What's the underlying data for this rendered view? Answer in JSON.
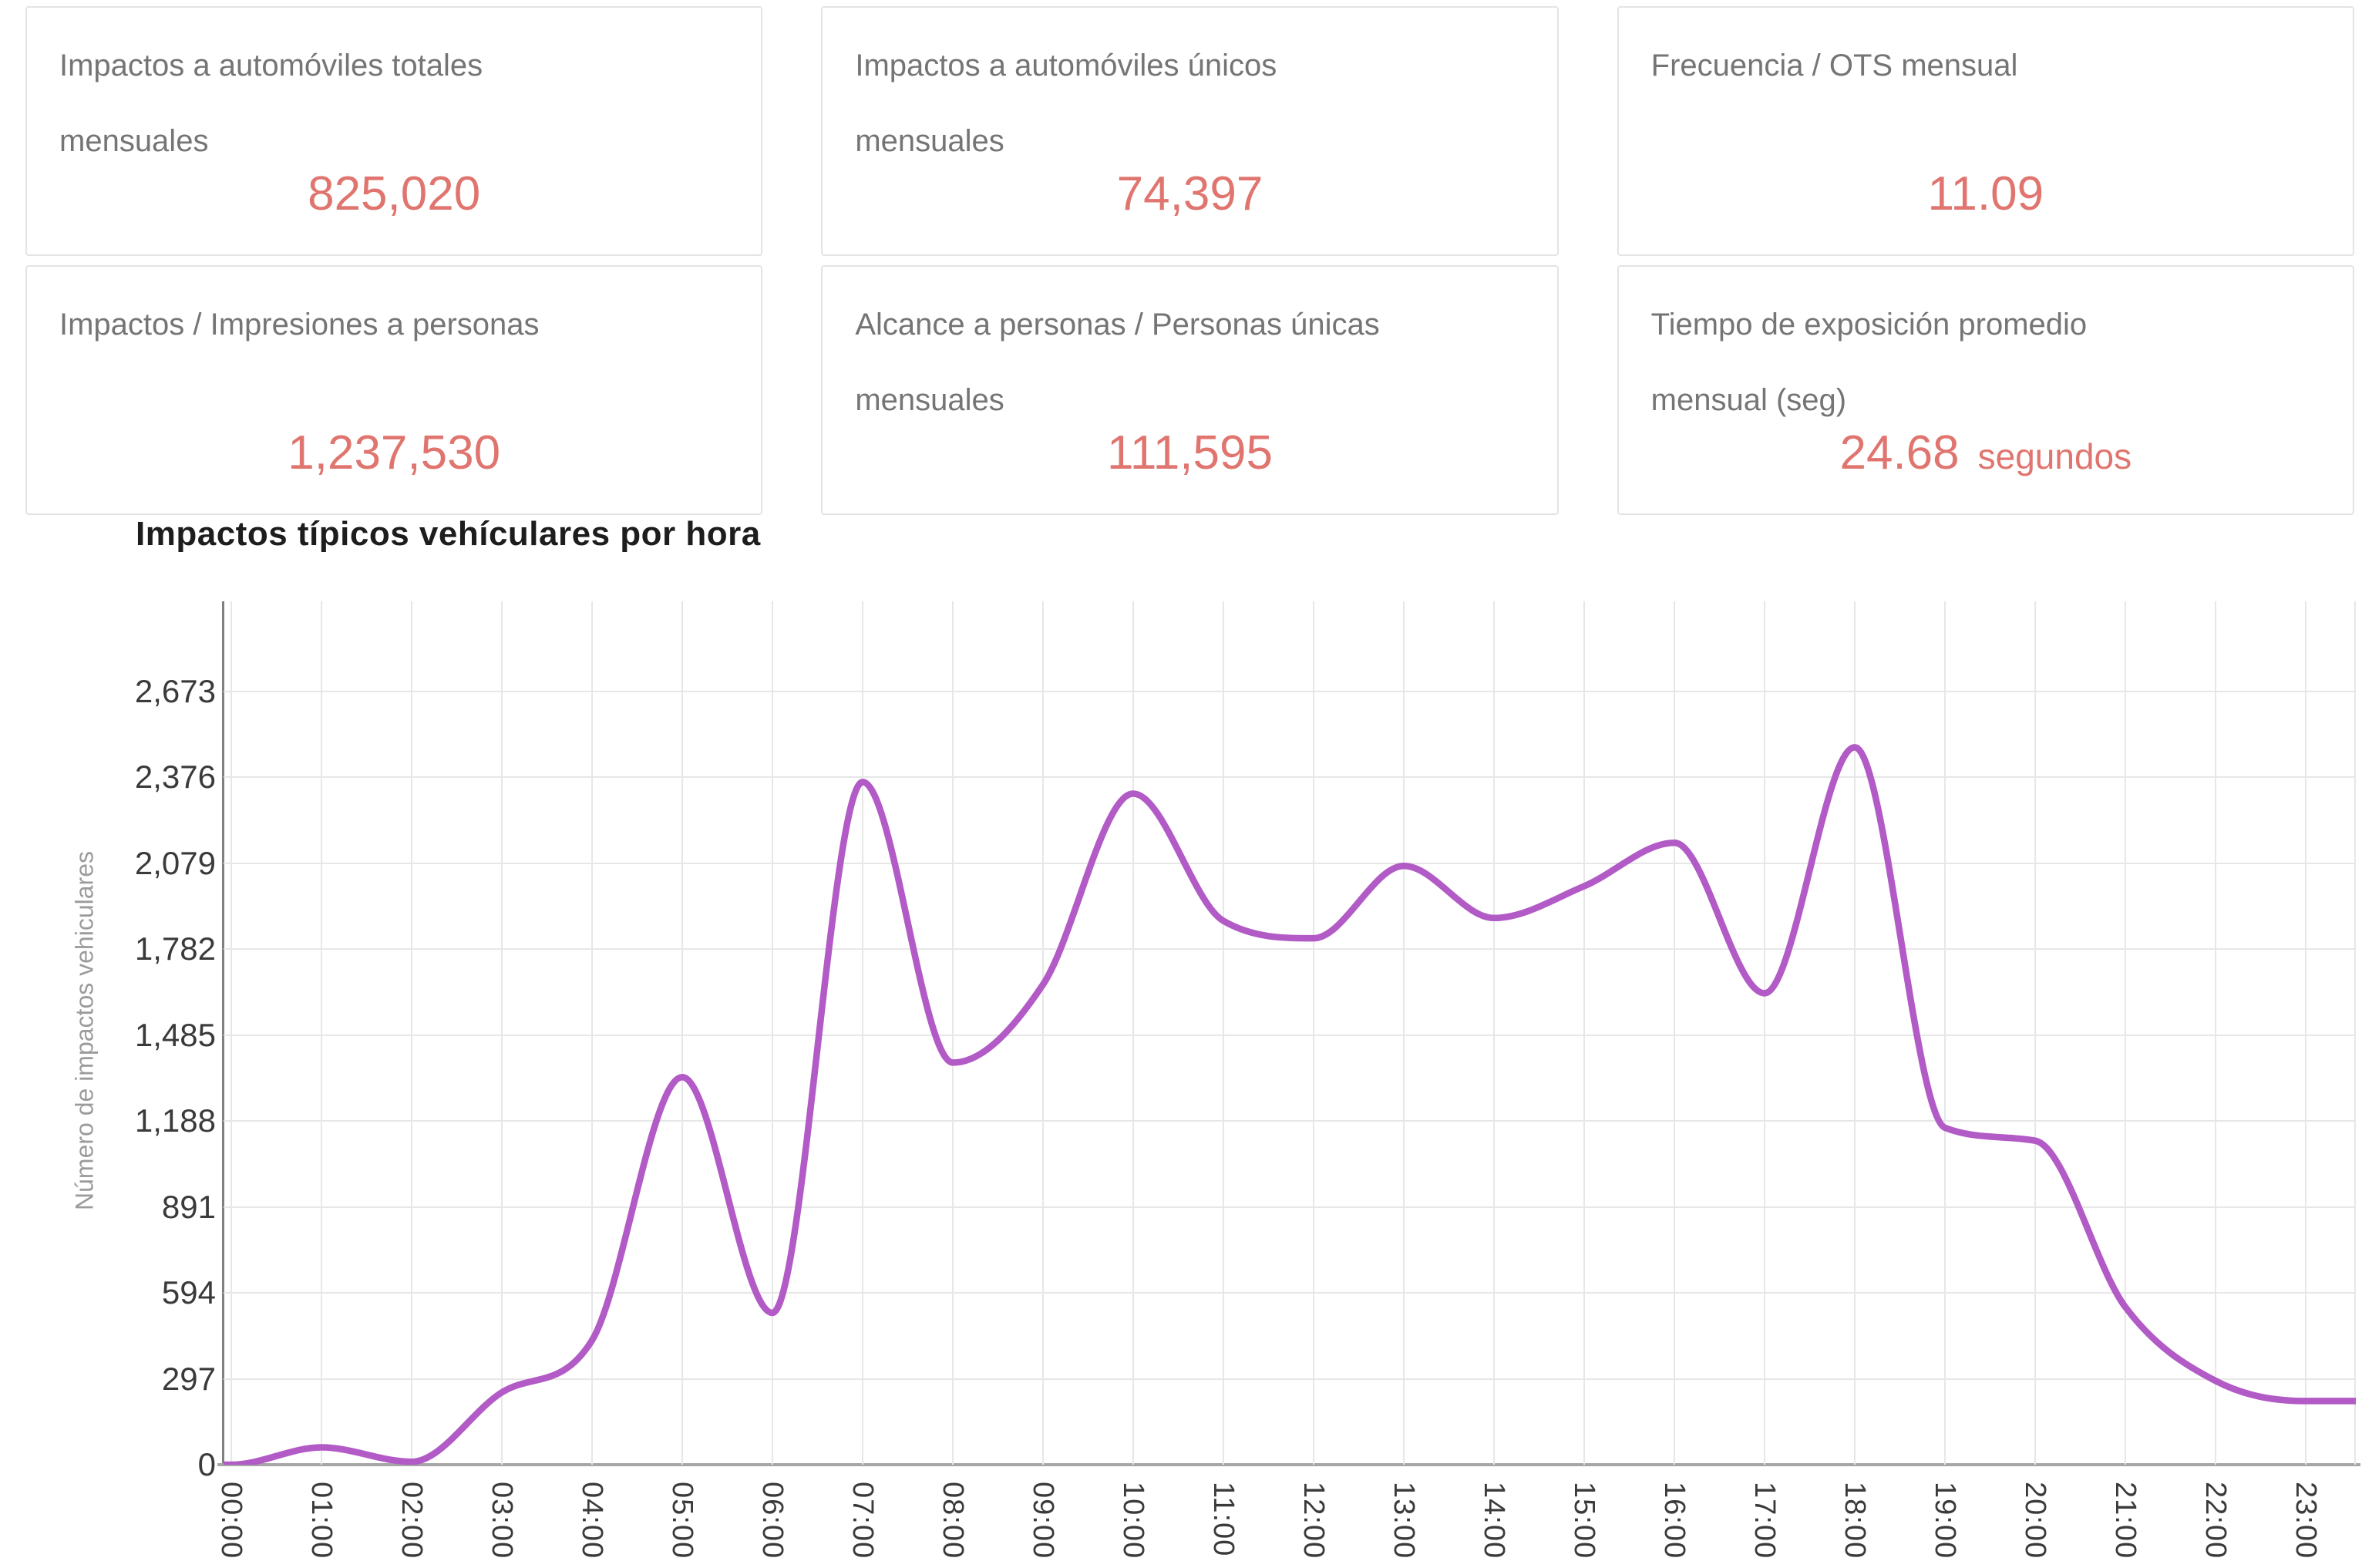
{
  "cards": [
    {
      "title": "Impactos a automóviles totales mensuales",
      "value": "825,020",
      "value_suffix": ""
    },
    {
      "title": "Impactos a automóviles únicos mensuales",
      "value": "74,397",
      "value_suffix": ""
    },
    {
      "title": "Frecuencia / OTS mensual",
      "value": "11.09",
      "value_suffix": ""
    },
    {
      "title": "Impactos / Impresiones a personas",
      "value": "1,237,530",
      "value_suffix": ""
    },
    {
      "title": "Alcance a personas / Personas únicas mensuales",
      "value": "111,595",
      "value_suffix": ""
    },
    {
      "title": "Tiempo de exposición promedio mensual (seg)",
      "value": "24.68",
      "value_suffix": "segundos"
    }
  ],
  "chart": {
    "title": "Impactos típicos vehículares por hora",
    "y_axis_title": "Número de impactos vehiculares"
  },
  "chart_data": {
    "type": "line",
    "title": "Impactos típicos vehículares por hora",
    "xlabel": "",
    "ylabel": "Número de impactos vehiculares",
    "x": [
      "00:00",
      "01:00",
      "02:00",
      "03:00",
      "04:00",
      "05:00",
      "06:00",
      "07:00",
      "08:00",
      "09:00",
      "10:00",
      "11:00",
      "12:00",
      "13:00",
      "14:00",
      "15:00",
      "16:00",
      "17:00",
      "18:00",
      "19:00",
      "20:00",
      "21:00",
      "22:00",
      "23:00"
    ],
    "values": [
      0,
      60,
      10,
      250,
      430,
      1340,
      525,
      2360,
      1390,
      1660,
      2320,
      1880,
      1820,
      2070,
      1890,
      2000,
      2150,
      1630,
      2480,
      1165,
      1120,
      545,
      290,
      220
    ],
    "y_ticks": [
      0,
      297,
      594,
      891,
      1188,
      1485,
      1782,
      2079,
      2376,
      2673
    ],
    "ylim": [
      0,
      2970
    ],
    "grid": true,
    "legend": false,
    "smooth": true,
    "line_color": "#b25ac6"
  },
  "colors": {
    "kpi_value": "#e0756f",
    "card_title": "#757575",
    "line": "#b25ac6",
    "gridline": "#e7e7e7",
    "tick_label": "#3a3a3a",
    "axis_title": "#9b9b9b"
  }
}
